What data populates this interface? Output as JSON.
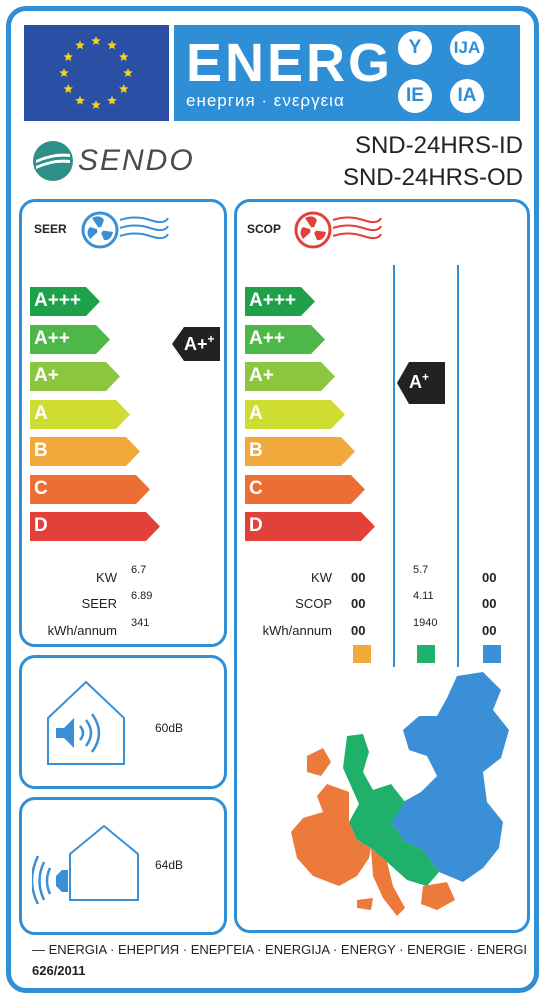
{
  "header": {
    "energy_word": "ENERG",
    "energy_subtitle": "енергия · ενεργεια",
    "circles": [
      "Y",
      "IJA",
      "IE",
      "IA"
    ]
  },
  "brand": {
    "name": "SENDO",
    "logo_icon": "sendo-logo-icon"
  },
  "model": {
    "indoor": "SND-24HRS-ID",
    "outdoor": "SND-24HRS-OD"
  },
  "classes": [
    "A+++",
    "A++",
    "A+",
    "A",
    "B",
    "C",
    "D"
  ],
  "class_colors": [
    "#1fa14a",
    "#4db848",
    "#8cc63f",
    "#cfdd33",
    "#f2a93b",
    "#ec6e34",
    "#e2413a"
  ],
  "seer": {
    "title": "SEER",
    "rating": "A+",
    "rating_sup": "+",
    "labels": [
      "KW",
      "SEER",
      "kWh/annum"
    ],
    "values": [
      "6.7",
      "6.89",
      "341"
    ]
  },
  "scop": {
    "title": "SCOP",
    "rating": "A",
    "rating_sup": "+",
    "labels": [
      "KW",
      "SCOP",
      "kWh/annum"
    ],
    "col1": [
      "00",
      "00",
      "00"
    ],
    "col2": [
      "5.7",
      "4.11",
      "1940"
    ],
    "col3": [
      "00",
      "00",
      "00"
    ],
    "zone_colors": [
      "#f2a93b",
      "#1fb06a",
      "#3a8fd6"
    ]
  },
  "noise": {
    "indoor": "60dB",
    "outdoor": "64dB"
  },
  "footer": {
    "languages": "ENERGIA · ЕНЕРГИЯ · ΕΝΕΡΓΕΙΑ · ENERGIJA · ENERGY · ENERGIE · ENERGI",
    "regulation": "626/2011"
  }
}
